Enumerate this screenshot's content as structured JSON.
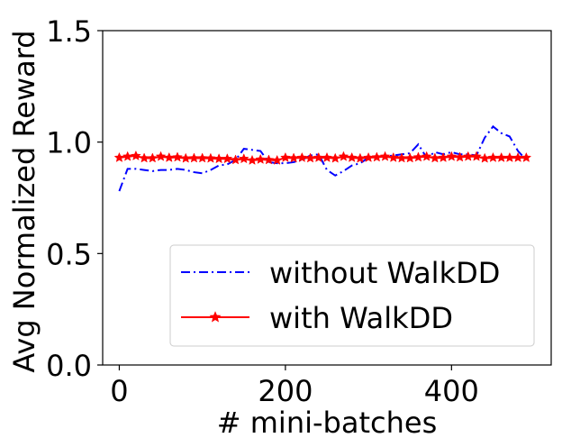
{
  "chart_data": {
    "type": "line",
    "xlabel": "# mini-batches",
    "ylabel": "Avg Normalized Reward",
    "xlim": [
      -20,
      520
    ],
    "ylim": [
      0.0,
      1.5
    ],
    "xticks": [
      0,
      200,
      400
    ],
    "xtick_labels": [
      "0",
      "200",
      "400"
    ],
    "yticks": [
      0.0,
      0.5,
      1.0,
      1.5
    ],
    "ytick_labels": [
      "0.0",
      "0.5",
      "1.0",
      "1.5"
    ],
    "grid": false,
    "legend_position": "lower-right",
    "series": [
      {
        "name": "without WalkDD",
        "color": "#0000ff",
        "linestyle": "dashdot",
        "marker": "none",
        "x": [
          0,
          10,
          20,
          30,
          40,
          50,
          60,
          70,
          80,
          90,
          100,
          110,
          120,
          130,
          140,
          150,
          160,
          170,
          180,
          190,
          200,
          210,
          220,
          230,
          240,
          250,
          260,
          270,
          280,
          290,
          300,
          310,
          320,
          330,
          340,
          350,
          360,
          370,
          380,
          390,
          400,
          410,
          420,
          430,
          440,
          450,
          460,
          470,
          480,
          490
        ],
        "values": [
          0.78,
          0.88,
          0.88,
          0.875,
          0.87,
          0.875,
          0.875,
          0.88,
          0.875,
          0.865,
          0.86,
          0.875,
          0.895,
          0.9,
          0.92,
          0.97,
          0.965,
          0.96,
          0.91,
          0.905,
          0.905,
          0.91,
          0.92,
          0.94,
          0.945,
          0.875,
          0.85,
          0.87,
          0.895,
          0.905,
          0.93,
          0.935,
          0.935,
          0.94,
          0.945,
          0.95,
          0.99,
          0.93,
          0.955,
          0.945,
          0.955,
          0.945,
          0.945,
          0.94,
          1.02,
          1.07,
          1.04,
          1.025,
          0.96,
          0.92
        ]
      },
      {
        "name": "with WalkDD",
        "color": "#ff0000",
        "linestyle": "solid",
        "marker": "star",
        "x": [
          0,
          10,
          20,
          30,
          40,
          50,
          60,
          70,
          80,
          90,
          100,
          110,
          120,
          130,
          140,
          150,
          160,
          170,
          180,
          190,
          200,
          210,
          220,
          230,
          240,
          250,
          260,
          270,
          280,
          290,
          300,
          310,
          320,
          330,
          340,
          350,
          360,
          370,
          380,
          390,
          400,
          410,
          420,
          430,
          440,
          450,
          460,
          470,
          480,
          490
        ],
        "values": [
          0.93,
          0.935,
          0.938,
          0.928,
          0.928,
          0.935,
          0.93,
          0.932,
          0.927,
          0.928,
          0.928,
          0.927,
          0.925,
          0.925,
          0.92,
          0.925,
          0.918,
          0.922,
          0.92,
          0.918,
          0.93,
          0.928,
          0.93,
          0.928,
          0.93,
          0.93,
          0.927,
          0.935,
          0.93,
          0.927,
          0.93,
          0.932,
          0.935,
          0.93,
          0.928,
          0.928,
          0.932,
          0.935,
          0.928,
          0.93,
          0.935,
          0.932,
          0.935,
          0.935,
          0.927,
          0.93,
          0.93,
          0.93,
          0.93,
          0.93
        ]
      }
    ]
  }
}
